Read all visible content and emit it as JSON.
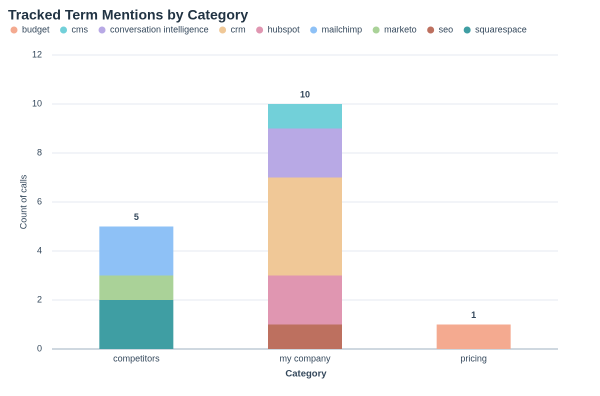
{
  "chart_data": {
    "type": "stacked_bar",
    "title": "Tracked Term Mentions by Category",
    "xlabel": "Category",
    "ylabel": "Count of calls",
    "categories": [
      "competitors",
      "my company",
      "pricing"
    ],
    "series": [
      {
        "name": "budget",
        "color": "#f4aa90",
        "values": [
          null,
          null,
          1
        ]
      },
      {
        "name": "cms",
        "color": "#72d0d9",
        "values": [
          null,
          1,
          null
        ]
      },
      {
        "name": "conversation intelligence",
        "color": "#b8a9e5",
        "values": [
          null,
          2,
          null
        ]
      },
      {
        "name": "crm",
        "color": "#f0c897",
        "values": [
          null,
          4,
          null
        ]
      },
      {
        "name": "hubspot",
        "color": "#e096b1",
        "values": [
          null,
          2,
          null
        ]
      },
      {
        "name": "mailchimp",
        "color": "#8ec1f6",
        "values": [
          2,
          null,
          null
        ]
      },
      {
        "name": "marketo",
        "color": "#aad298",
        "values": [
          1,
          null,
          null
        ]
      },
      {
        "name": "seo",
        "color": "#bd705f",
        "values": [
          null,
          1,
          null
        ]
      },
      {
        "name": "squarespace",
        "color": "#3f9ea3",
        "values": [
          2,
          null,
          null
        ]
      }
    ],
    "totals": [
      5,
      10,
      1
    ],
    "ylim": [
      0,
      12
    ],
    "yticks": [
      0,
      2,
      4,
      6,
      8,
      10,
      12
    ],
    "grid": true,
    "legend": "top"
  }
}
